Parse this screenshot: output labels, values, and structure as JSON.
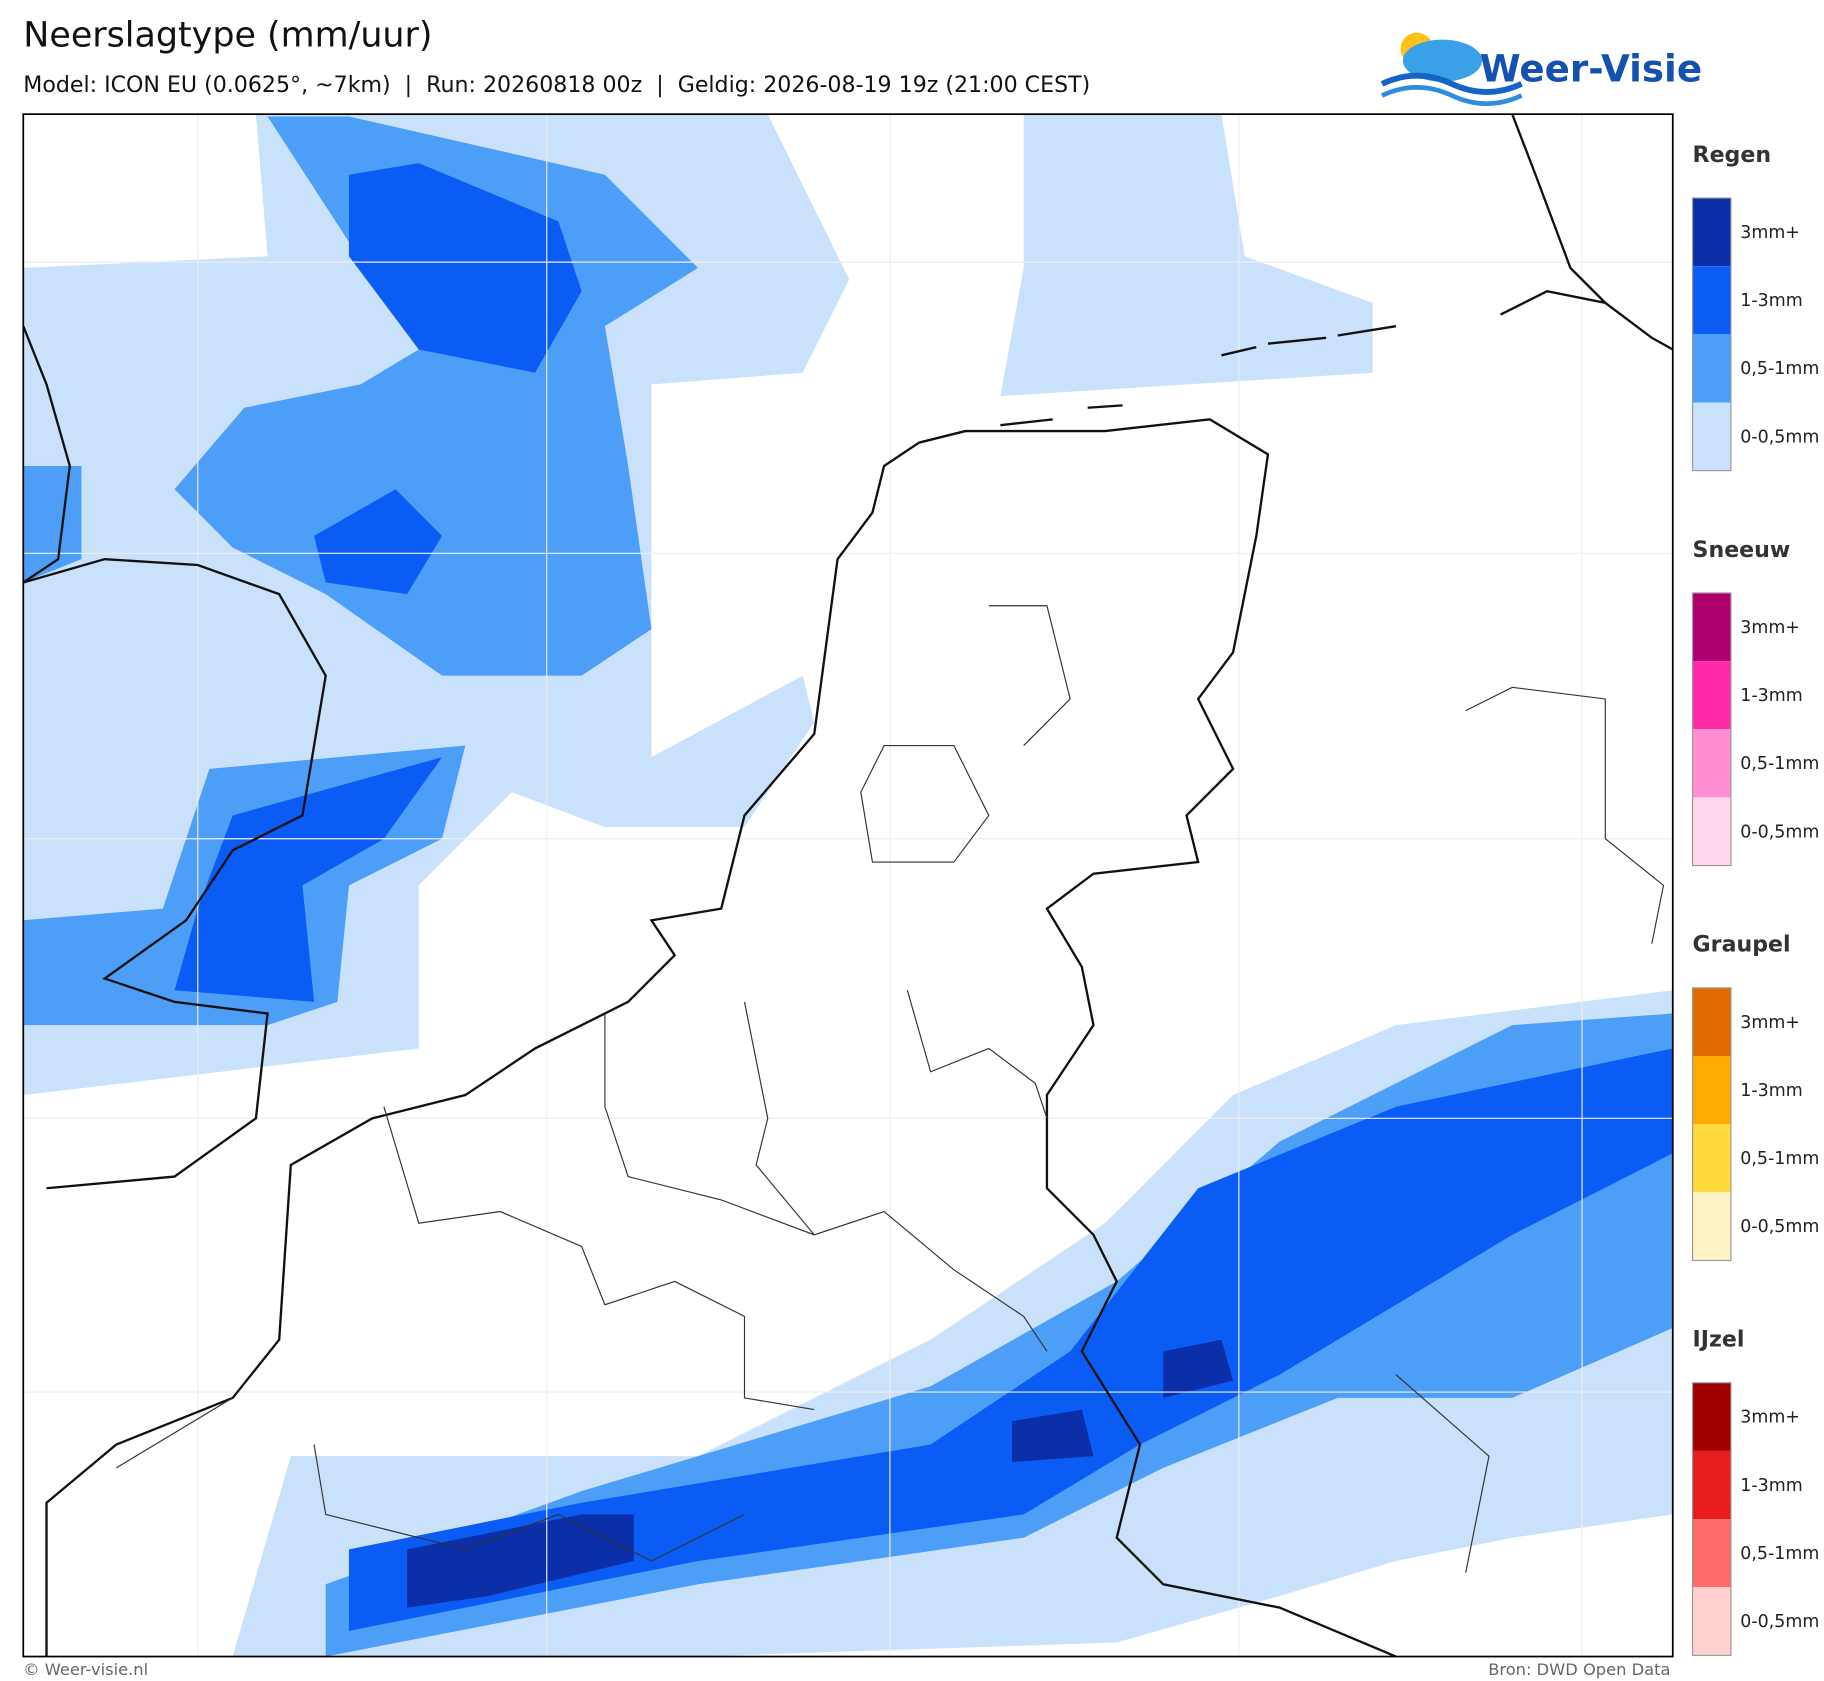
{
  "header": {
    "title": "Neerslagtype (mm/uur)",
    "subtitle": "Model: ICON EU (0.0625°, ~7km)  |  Run: 20260818 00z  |  Geldig: 2026-08-19 19z (21:00 CEST)"
  },
  "logo": {
    "text": "Weer-Visie"
  },
  "legend": [
    {
      "title": "Regen",
      "items": [
        {
          "label": "3mm+",
          "color": "#0a2fa8"
        },
        {
          "label": "1-3mm",
          "color": "#0a5cf5"
        },
        {
          "label": "0,5-1mm",
          "color": "#4d9ef7"
        },
        {
          "label": "0-0,5mm",
          "color": "#c9e1fb"
        }
      ]
    },
    {
      "title": "Sneeuw",
      "items": [
        {
          "label": "3mm+",
          "color": "#b0006f"
        },
        {
          "label": "1-3mm",
          "color": "#ff2aa8"
        },
        {
          "label": "0,5-1mm",
          "color": "#ff8fd0"
        },
        {
          "label": "0-0,5mm",
          "color": "#ffd6ee"
        }
      ]
    },
    {
      "title": "Graupel",
      "items": [
        {
          "label": "3mm+",
          "color": "#e06c00"
        },
        {
          "label": "1-3mm",
          "color": "#ffaa00"
        },
        {
          "label": "0,5-1mm",
          "color": "#ffd83a"
        },
        {
          "label": "0-0,5mm",
          "color": "#fff2c4"
        }
      ]
    },
    {
      "title": "IJzel",
      "items": [
        {
          "label": "3mm+",
          "color": "#a00000"
        },
        {
          "label": "1-3mm",
          "color": "#e81c1c"
        },
        {
          "label": "0,5-1mm",
          "color": "#ff6b6b"
        },
        {
          "label": "0-0,5mm",
          "color": "#ffd0d0"
        }
      ]
    }
  ],
  "footer": {
    "left": "© Weer-visie.nl",
    "right": "Bron: DWD Open Data"
  }
}
